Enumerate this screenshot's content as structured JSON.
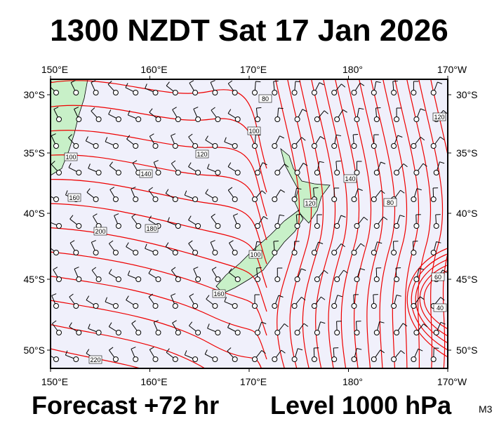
{
  "header": {
    "title": "1300 NZDT Sat 17 Jan 2026"
  },
  "map": {
    "lon_labels": [
      "150°E",
      "160°E",
      "170°E",
      "180°",
      "170°W"
    ],
    "lat_labels": [
      "30°S",
      "35°S",
      "40°S",
      "45°S",
      "50°S"
    ],
    "contour_labels": [
      "80",
      "100",
      "100",
      "120",
      "140",
      "160",
      "200",
      "180",
      "220",
      "120",
      "140",
      "80",
      "100",
      "160",
      "120",
      "60",
      "40"
    ]
  },
  "footer": {
    "forecast": "Forecast +72 hr",
    "level": "Level 1000 hPa",
    "model": "M3"
  }
}
